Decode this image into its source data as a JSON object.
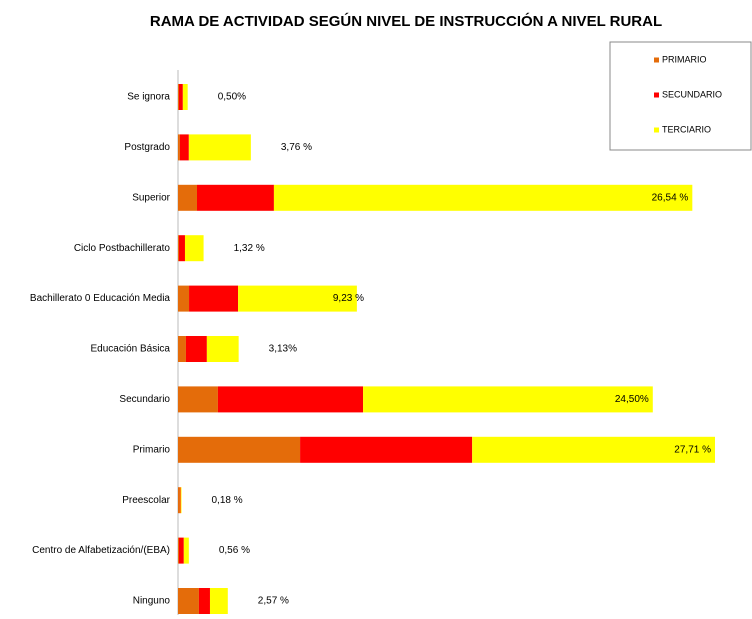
{
  "chart_data": {
    "type": "stacked_bar_horizontal",
    "title": "RAMA DE ACTIVIDAD SEGÚN NIVEL DE INSTRUCCIÓN A NIVEL RURAL",
    "categories": [
      "Se ignora",
      "Postgrado",
      "Superior",
      "Ciclo Postbachillerato",
      "Bachillerato 0 Educación Media",
      "Educación Básica",
      "Secundario",
      "Primario",
      "Preescolar",
      "Centro de Alfabetización/(EBA)",
      "Ninguno"
    ],
    "series": [
      {
        "name": "PRIMARIO",
        "color": "#e46c0a",
        "values": [
          0.05,
          0.1,
          0.98,
          0.05,
          0.57,
          0.41,
          2.06,
          6.3,
          0.1,
          0.05,
          1.08
        ]
      },
      {
        "name": "SECUNDARIO",
        "color": "#ff0000",
        "values": [
          0.2,
          0.46,
          3.97,
          0.31,
          2.53,
          1.08,
          7.49,
          8.88,
          0.03,
          0.25,
          0.57
        ]
      },
      {
        "name": "TERCIARIO",
        "color": "#ffff00",
        "values": [
          0.25,
          3.2,
          21.59,
          0.96,
          6.13,
          1.64,
          14.95,
          12.53,
          0.05,
          0.26,
          0.92
        ]
      }
    ],
    "totals": [
      0.5,
      3.76,
      26.54,
      1.32,
      9.23,
      3.13,
      24.5,
      27.71,
      0.18,
      0.56,
      2.57
    ],
    "totals_labels": [
      "0,50%",
      "3,76 %",
      "26,54 %",
      "1,32 %",
      "9,23 %",
      "3,13%",
      "24,50%",
      "27,71 %",
      "0,18 %",
      "0,56 %",
      "2,57 %"
    ],
    "legend": "top-right"
  }
}
